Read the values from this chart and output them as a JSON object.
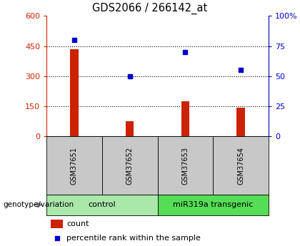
{
  "title": "GDS2066 / 266142_at",
  "samples": [
    "GSM37651",
    "GSM37652",
    "GSM37653",
    "GSM37654"
  ],
  "counts": [
    435,
    75,
    175,
    145
  ],
  "percentiles": [
    80,
    50,
    70,
    55
  ],
  "groups": [
    {
      "label": "control",
      "samples": [
        0,
        1
      ],
      "color": "#aae8aa"
    },
    {
      "label": "miR319a transgenic",
      "samples": [
        2,
        3
      ],
      "color": "#55dd55"
    }
  ],
  "bar_color": "#cc2200",
  "dot_color": "#0000cc",
  "left_ylim": [
    0,
    600
  ],
  "right_ylim": [
    0,
    100
  ],
  "left_yticks": [
    0,
    150,
    300,
    450,
    600
  ],
  "right_yticks": [
    0,
    25,
    50,
    75,
    100
  ],
  "right_yticklabels": [
    "0",
    "25",
    "50",
    "75",
    "100%"
  ],
  "left_ycolor": "#cc2200",
  "right_ycolor": "#0000cc",
  "grid_values": [
    150,
    300,
    450
  ],
  "legend_count_label": "count",
  "legend_pct_label": "percentile rank within the sample",
  "genotype_label": "genotype/variation",
  "background_color": "#ffffff",
  "label_area_color": "#c8c8c8",
  "bar_width": 0.15
}
